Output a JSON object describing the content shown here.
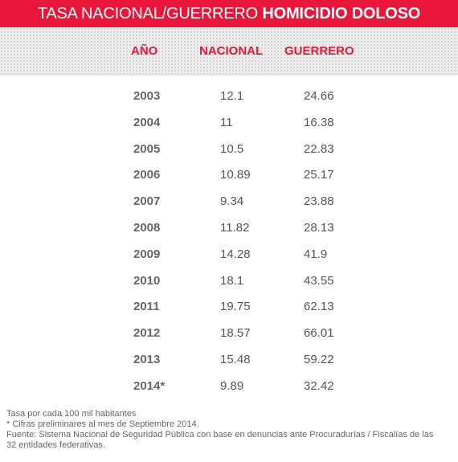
{
  "title": {
    "prefix": "TASA NACIONAL/GUERRERO ",
    "emphasis": "HOMICIDIO DOLOSO"
  },
  "colors": {
    "accent": "#e8173a",
    "text": "#555555",
    "band": "#ececec"
  },
  "chart_data": {
    "type": "table",
    "title": "TASA NACIONAL/GUERRERO HOMICIDIO DOLOSO",
    "columns": [
      "AÑO",
      "NACIONAL",
      "GUERRERO"
    ],
    "rows": [
      {
        "year": "2003",
        "nacional": "12.1",
        "guerrero": "24.66"
      },
      {
        "year": "2004",
        "nacional": "11",
        "guerrero": "16.38"
      },
      {
        "year": "2005",
        "nacional": "10.5",
        "guerrero": "22.83"
      },
      {
        "year": "2006",
        "nacional": "10.89",
        "guerrero": "25.17"
      },
      {
        "year": "2007",
        "nacional": "9.34",
        "guerrero": "23.88"
      },
      {
        "year": "2008",
        "nacional": "11.82",
        "guerrero": "28.13"
      },
      {
        "year": "2009",
        "nacional": "14.28",
        "guerrero": "41.9"
      },
      {
        "year": "2010",
        "nacional": "18.1",
        "guerrero": "43.55"
      },
      {
        "year": "2011",
        "nacional": "19.75",
        "guerrero": "62.13"
      },
      {
        "year": "2012",
        "nacional": "18.57",
        "guerrero": "66.01"
      },
      {
        "year": "2013",
        "nacional": "15.48",
        "guerrero": "59.22"
      },
      {
        "year": "2014*",
        "nacional": "9.89",
        "guerrero": "32.42"
      }
    ]
  },
  "notes": [
    "Tasa por cada 100 mil habitantes",
    "* Cifras preliminares al mes de Septiembre 2014.",
    "Fuente: Sistema Nacional de Seguridad Pública con base en denuncias ante Procuradurías / Fiscalías de las",
    "32 entidades federativas."
  ]
}
